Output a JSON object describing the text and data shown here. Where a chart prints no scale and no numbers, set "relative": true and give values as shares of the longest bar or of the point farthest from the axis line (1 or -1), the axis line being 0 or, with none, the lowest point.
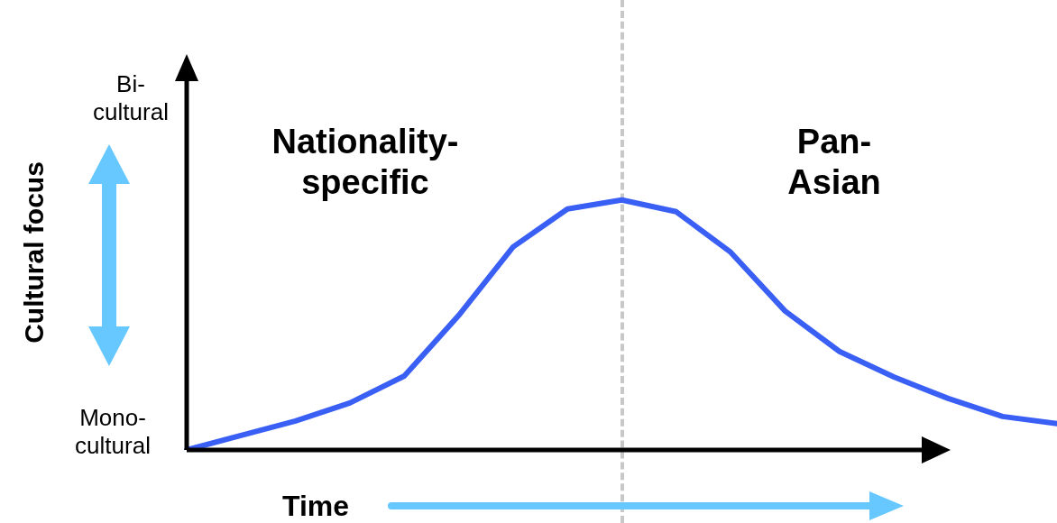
{
  "chart_data": {
    "type": "line",
    "relative": true,
    "xlabel": "Time",
    "ylabel": "Cultural focus",
    "tick_labels": false,
    "marker": "none",
    "line_style": "solid",
    "categories": [
      null,
      null,
      null,
      null,
      null,
      null,
      null,
      null,
      null,
      null,
      null,
      null,
      null,
      null,
      null,
      null,
      null
    ],
    "series": [
      {
        "color": "#3a5ff5",
        "values": [
          0,
          0.058,
          0.116,
          0.188,
          0.296,
          0.538,
          0.812,
          0.964,
          1,
          0.953,
          0.791,
          0.556,
          0.394,
          0.292,
          0.206,
          0.134,
          0.105
        ]
      }
    ],
    "annotations": [
      "Bi-cultural",
      "Mono-cultural",
      "Nationality-specific",
      "Pan-Asian"
    ]
  }
}
